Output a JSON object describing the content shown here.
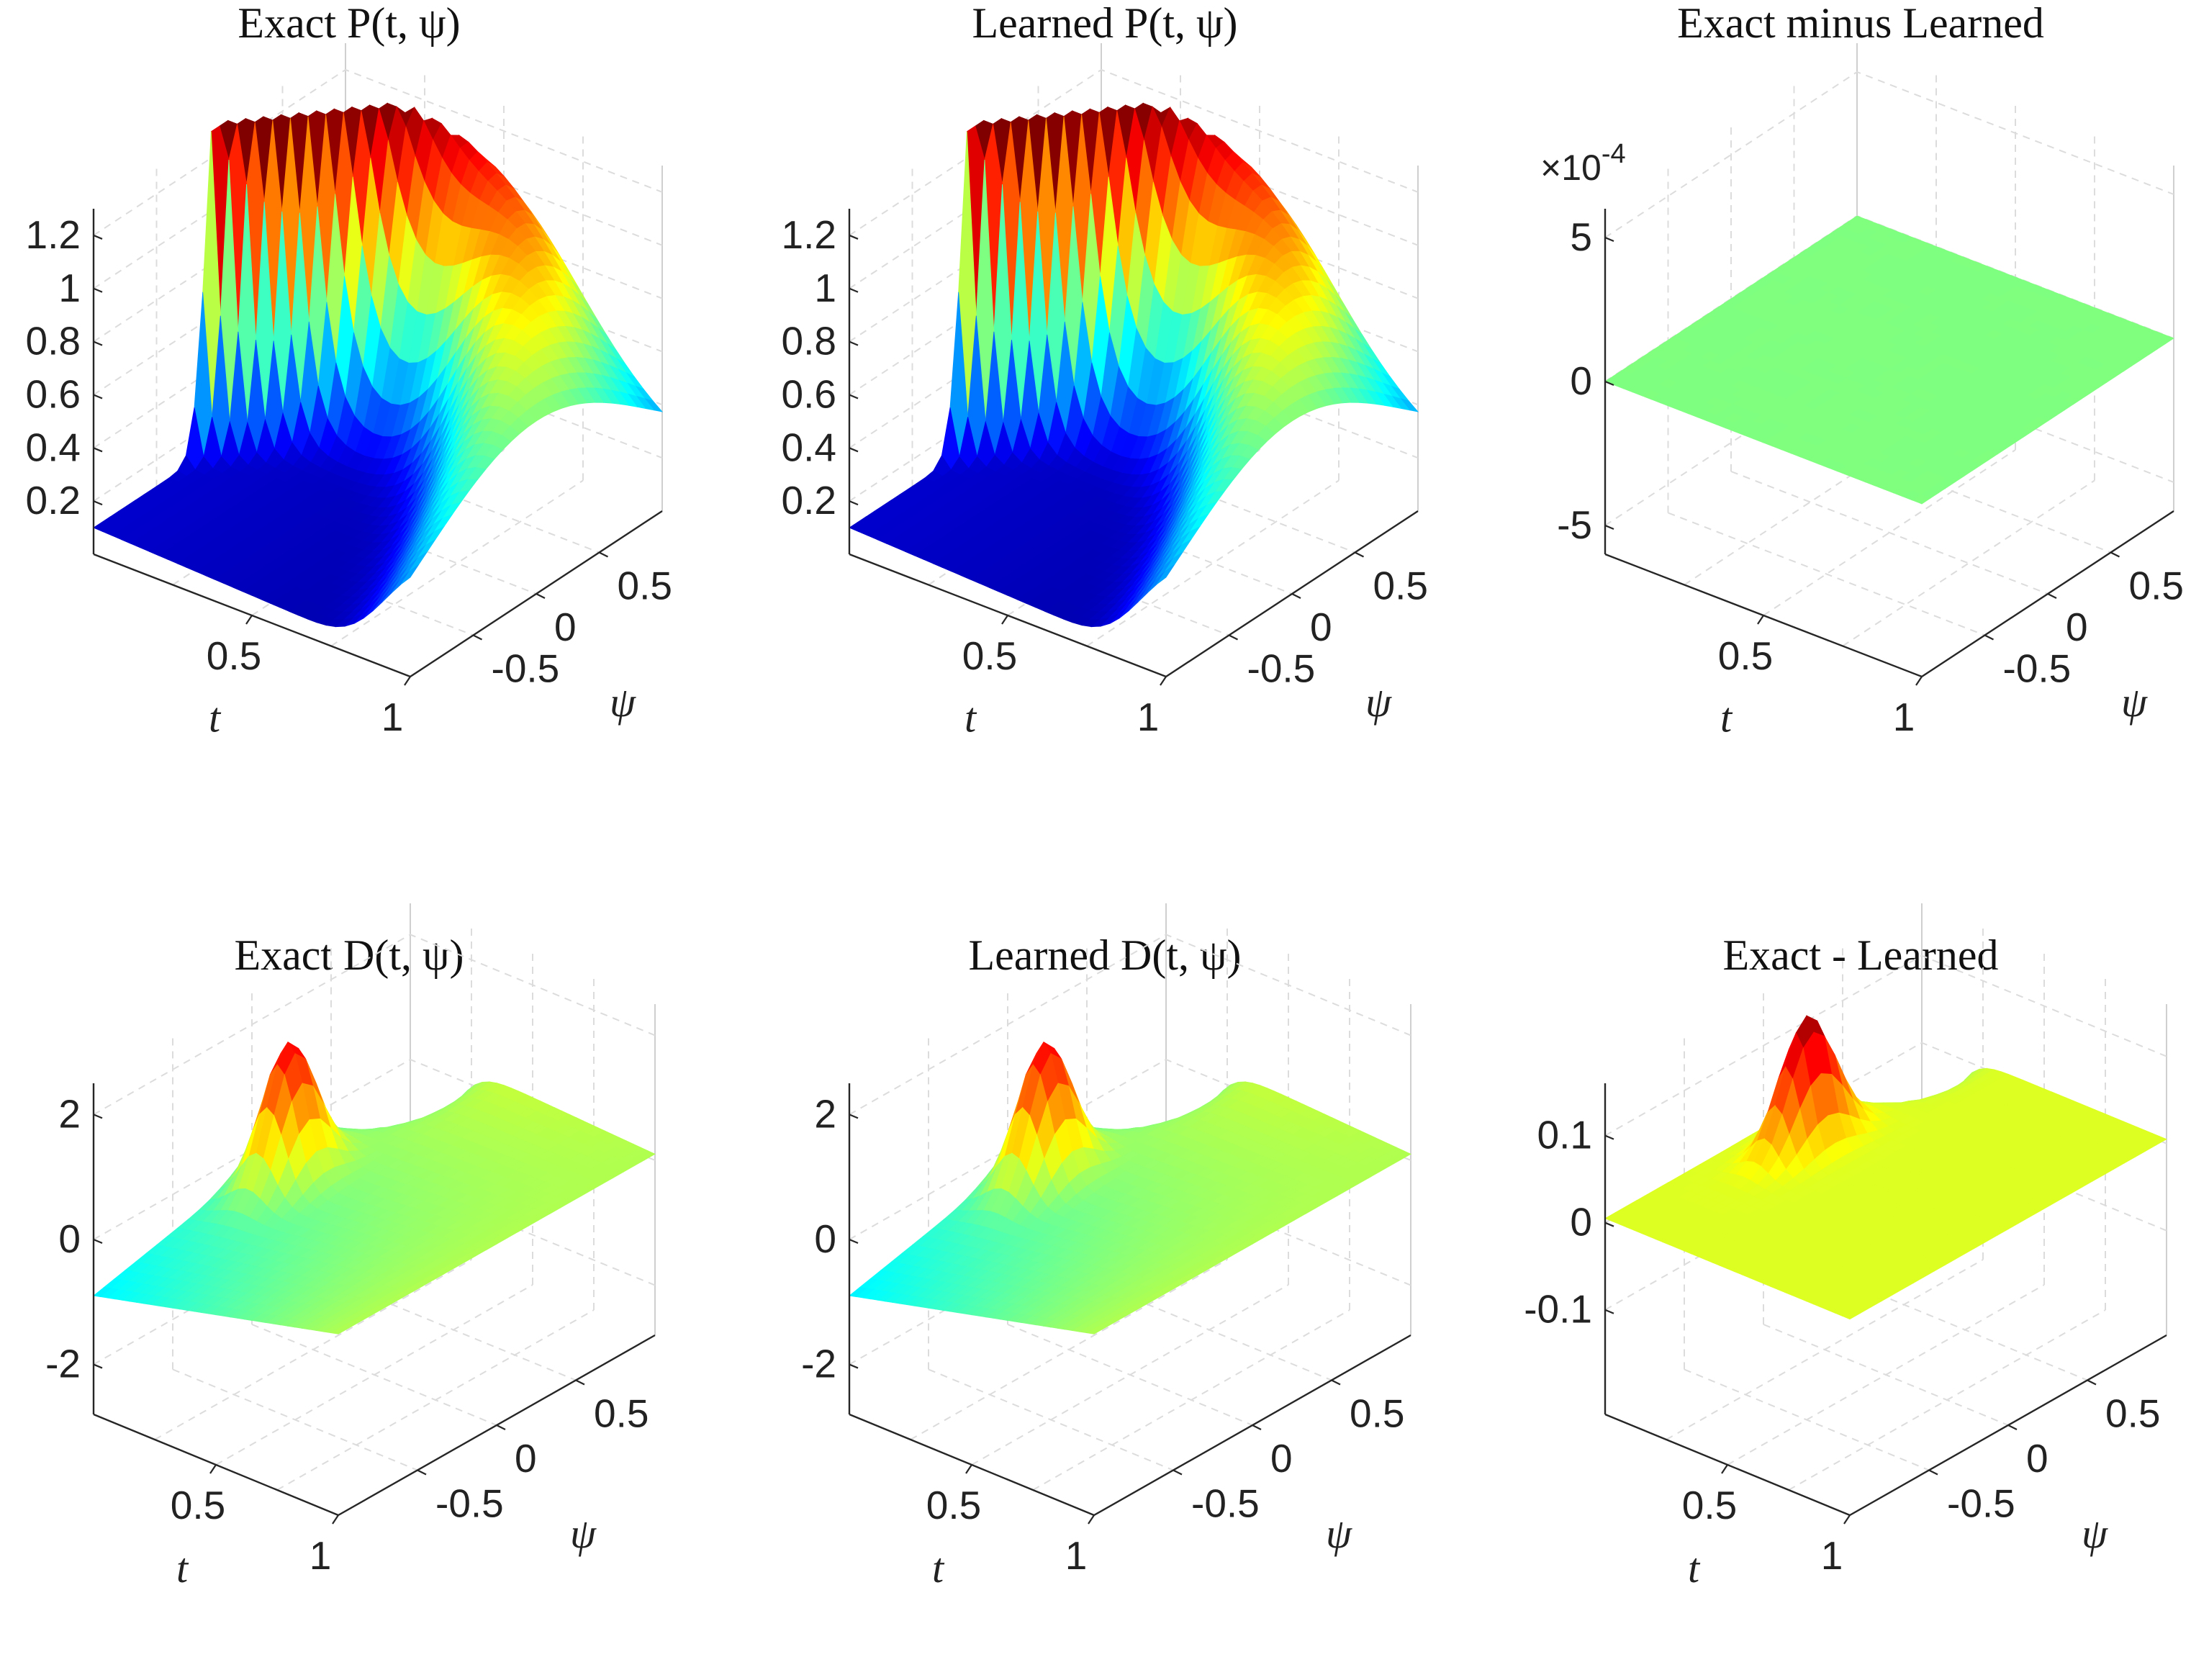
{
  "figure": {
    "panels": [
      {
        "id": "p1",
        "title": "Exact P(t, ψ)",
        "zlim": [
          0,
          1.3
        ],
        "z_ticks": [
          "0.2",
          "0.4",
          "0.6",
          "0.8",
          "1",
          "1.2"
        ],
        "z_vals": [
          0.2,
          0.4,
          0.6,
          0.8,
          1.0,
          1.2
        ],
        "t_ticks": [
          "0.5",
          "1"
        ],
        "psi_ticks": [
          "-0.5",
          "0",
          "0.5"
        ],
        "xlabel": "t",
        "ylabel": "ψ",
        "exponent": "",
        "kind": "P",
        "view": "top"
      },
      {
        "id": "p2",
        "title": "Learned P(t, ψ)",
        "zlim": [
          0,
          1.3
        ],
        "z_ticks": [
          "0.2",
          "0.4",
          "0.6",
          "0.8",
          "1",
          "1.2"
        ],
        "z_vals": [
          0.2,
          0.4,
          0.6,
          0.8,
          1.0,
          1.2
        ],
        "t_ticks": [
          "0.5",
          "1"
        ],
        "psi_ticks": [
          "-0.5",
          "0",
          "0.5"
        ],
        "xlabel": "t",
        "ylabel": "ψ",
        "exponent": "",
        "kind": "P",
        "view": "top"
      },
      {
        "id": "p3",
        "title": "Exact minus Learned",
        "zlim": [
          -6,
          6
        ],
        "z_ticks": [
          "-5",
          "0",
          "5"
        ],
        "z_vals": [
          -5,
          0,
          5
        ],
        "t_ticks": [
          "0.5",
          "1"
        ],
        "psi_ticks": [
          "-0.5",
          "0",
          "0.5"
        ],
        "xlabel": "t",
        "ylabel": "ψ",
        "exponent": "×10-4",
        "kind": "noise",
        "view": "top"
      },
      {
        "id": "p4",
        "title": "Exact D(t, ψ)",
        "zlim": [
          -2.8,
          2.5
        ],
        "z_ticks": [
          "-2",
          "0",
          "2"
        ],
        "z_vals": [
          -2,
          0,
          2
        ],
        "t_ticks": [
          "0.5",
          "1"
        ],
        "psi_ticks": [
          "-0.5",
          "0",
          "0.5"
        ],
        "xlabel": "t",
        "ylabel": "ψ",
        "exponent": "",
        "kind": "D",
        "view": "bottom"
      },
      {
        "id": "p5",
        "title": "Learned D(t, ψ)",
        "zlim": [
          -2.8,
          2.5
        ],
        "z_ticks": [
          "-2",
          "0",
          "2"
        ],
        "z_vals": [
          -2,
          0,
          2
        ],
        "t_ticks": [
          "0.5",
          "1"
        ],
        "psi_ticks": [
          "-0.5",
          "0",
          "0.5"
        ],
        "xlabel": "t",
        "ylabel": "ψ",
        "exponent": "",
        "kind": "D",
        "view": "bottom"
      },
      {
        "id": "p6",
        "title": "Exact - Learned",
        "zlim": [
          -0.22,
          0.16
        ],
        "z_ticks": [
          "-0.1",
          "0",
          "0.1"
        ],
        "z_vals": [
          -0.1,
          0,
          0.1
        ],
        "t_ticks": [
          "0.5",
          "1"
        ],
        "psi_ticks": [
          "-0.5",
          "0",
          "0.5"
        ],
        "xlabel": "t",
        "ylabel": "ψ",
        "exponent": "",
        "kind": "Derr",
        "view": "bottom"
      }
    ]
  },
  "chart_data": [
    {
      "type": "surface",
      "title": "Exact P(t, ψ)",
      "xlabel": "t",
      "ylabel": "ψ",
      "x_range": [
        0,
        1
      ],
      "y_range": [
        -1,
        1
      ],
      "zlim": [
        0,
        1.3
      ],
      "z_ticks": [
        0.2,
        0.4,
        0.6,
        0.8,
        1,
        1.2
      ],
      "grid": true,
      "colormap": "jet"
    },
    {
      "type": "surface",
      "title": "Learned P(t, ψ)",
      "xlabel": "t",
      "ylabel": "ψ",
      "x_range": [
        0,
        1
      ],
      "y_range": [
        -1,
        1
      ],
      "zlim": [
        0,
        1.3
      ],
      "z_ticks": [
        0.2,
        0.4,
        0.6,
        0.8,
        1,
        1.2
      ],
      "grid": true,
      "colormap": "jet"
    },
    {
      "type": "surface",
      "title": "Exact minus Learned",
      "xlabel": "t",
      "ylabel": "ψ",
      "x_range": [
        0,
        1
      ],
      "y_range": [
        -1,
        1
      ],
      "zlim": [
        -0.0006,
        0.0006
      ],
      "z_ticks": [
        -5,
        0,
        5
      ],
      "z_scale": "×10^-4",
      "grid": true,
      "colormap": "jet"
    },
    {
      "type": "surface",
      "title": "Exact D(t, ψ)",
      "xlabel": "t",
      "ylabel": "ψ",
      "x_range": [
        0,
        1
      ],
      "y_range": [
        -1,
        1
      ],
      "zlim": [
        -2.8,
        2.5
      ],
      "z_ticks": [
        -2,
        0,
        2
      ],
      "grid": true,
      "colormap": "jet"
    },
    {
      "type": "surface",
      "title": "Learned D(t, ψ)",
      "xlabel": "t",
      "ylabel": "ψ",
      "x_range": [
        0,
        1
      ],
      "y_range": [
        -1,
        1
      ],
      "zlim": [
        -2.8,
        2.5
      ],
      "z_ticks": [
        -2,
        0,
        2
      ],
      "grid": true,
      "colormap": "jet"
    },
    {
      "type": "surface",
      "title": "Exact - Learned",
      "xlabel": "t",
      "ylabel": "ψ",
      "x_range": [
        0,
        1
      ],
      "y_range": [
        -1,
        1
      ],
      "zlim": [
        -0.22,
        0.16
      ],
      "z_ticks": [
        -0.1,
        0,
        0.1
      ],
      "grid": true,
      "colormap": "jet"
    }
  ]
}
